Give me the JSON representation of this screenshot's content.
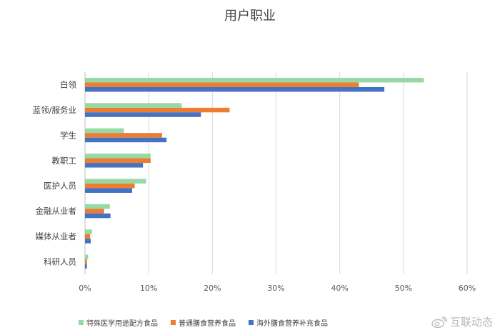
{
  "chart_data": {
    "type": "bar",
    "orientation": "horizontal",
    "title": "用户职业",
    "categories": [
      "白领",
      "蓝领/服务业",
      "学生",
      "教职工",
      "医护人员",
      "金融从业者",
      "媒体从业者",
      "科研人员"
    ],
    "series": [
      {
        "name": "特殊医学用途配方食品",
        "color": "#97d9a4",
        "values": [
          53.2,
          15.2,
          6.1,
          10.3,
          9.6,
          3.9,
          1.1,
          0.5
        ]
      },
      {
        "name": "普通膳食营养食品",
        "color": "#ed7d31",
        "values": [
          43.0,
          22.7,
          12.1,
          10.3,
          7.8,
          3.0,
          0.8,
          0.3
        ]
      },
      {
        "name": "海外膳食营养补充食品",
        "color": "#4472c4",
        "values": [
          47.0,
          18.2,
          12.8,
          9.1,
          7.4,
          4.0,
          0.9,
          0.3
        ]
      }
    ],
    "xlim": [
      0,
      60
    ],
    "xticks": [
      "0%",
      "10%",
      "20%",
      "30%",
      "40%",
      "50%",
      "60%"
    ],
    "grid": true,
    "legend": "bottom"
  },
  "watermark": {
    "text": "互联动态",
    "icon": "weibo-icon"
  }
}
